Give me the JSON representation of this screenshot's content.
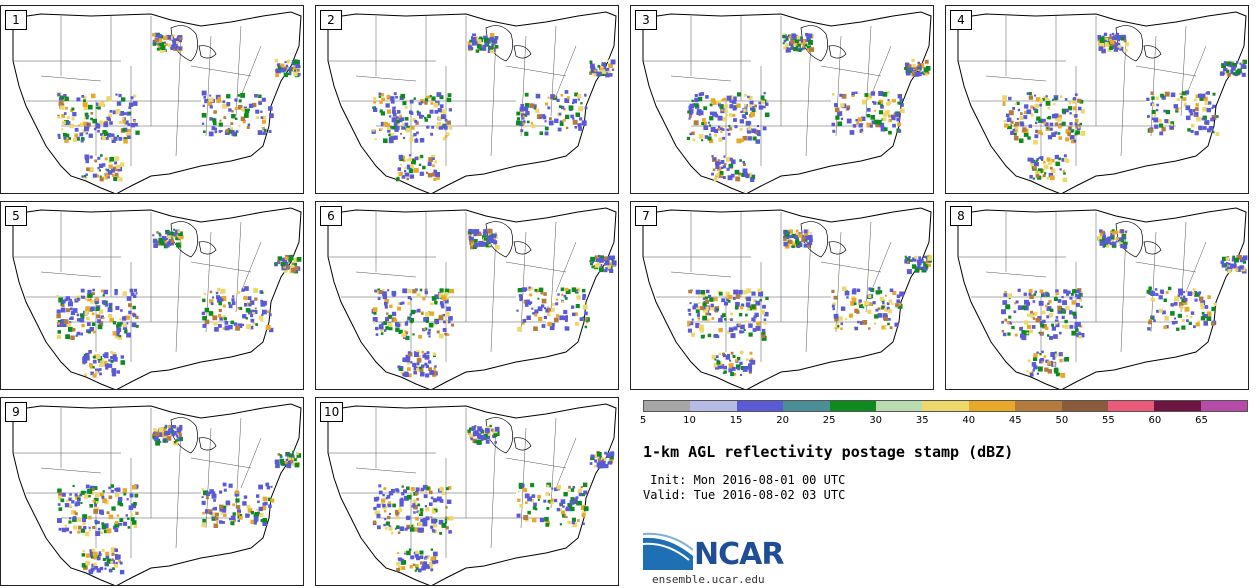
{
  "panels": [
    {
      "label": "1",
      "seed": 11
    },
    {
      "label": "2",
      "seed": 23
    },
    {
      "label": "3",
      "seed": 37
    },
    {
      "label": "4",
      "seed": 41
    },
    {
      "label": "5",
      "seed": 53
    },
    {
      "label": "6",
      "seed": 67
    },
    {
      "label": "7",
      "seed": 71
    },
    {
      "label": "8",
      "seed": 83
    },
    {
      "label": "9",
      "seed": 97
    },
    {
      "label": "10",
      "seed": 109
    }
  ],
  "colorbar": {
    "colors": [
      "#a6a6a6",
      "#b4bbe6",
      "#5a5ad6",
      "#4a8f98",
      "#0e8a1e",
      "#b8dcb0",
      "#ecd96a",
      "#e8a82a",
      "#b57b3c",
      "#8b5c3c",
      "#ec5a7a",
      "#6e1440",
      "#b64ca8"
    ],
    "ticks": [
      "5",
      "10",
      "15",
      "20",
      "25",
      "30",
      "35",
      "40",
      "45",
      "50",
      "55",
      "60",
      "65"
    ]
  },
  "title": "1-km AGL reflectivity postage stamp (dBZ)",
  "init_label": " Init: Mon 2016-08-01 00 UTC",
  "valid_label": "Valid: Tue 2016-08-02 03 UTC",
  "logo": {
    "name": "NCAR",
    "url": "ensemble.ucar.edu"
  }
}
